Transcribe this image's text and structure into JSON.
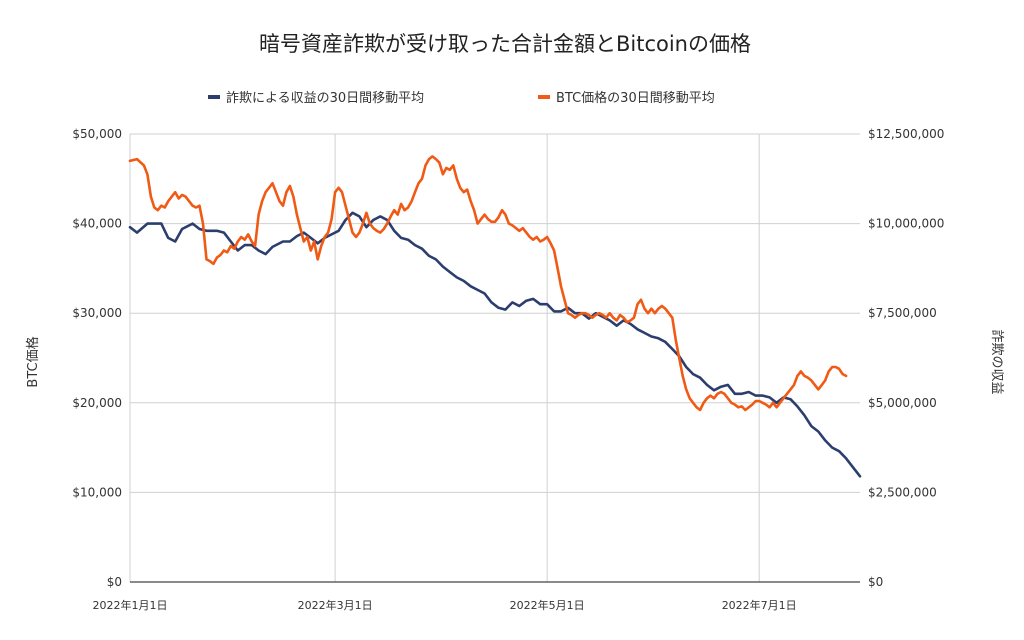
{
  "chart_data": {
    "type": "line",
    "title": "暗号資産詐欺が受け取った合計金額とBitcoinの価格",
    "x_tick_labels": [
      "2022年1月1日",
      "2022年3月1日",
      "2022年5月1日",
      "2022年7月1日"
    ],
    "y_left": {
      "label": "BTC価格",
      "ylim": [
        0,
        50000
      ],
      "tick_labels": [
        "$0",
        "$10,000",
        "$20,000",
        "$30,000",
        "$40,000",
        "$50,000"
      ]
    },
    "y_right": {
      "label": "詐欺の収益",
      "ylim": [
        0,
        12500000
      ],
      "tick_labels": [
        "$0",
        "$2,500,000",
        "$5,000,000",
        "$7,500,000",
        "$10,000,000",
        "$12,500,000"
      ]
    },
    "x_range_days": [
      0,
      210
    ],
    "x_tick_days": [
      0,
      59,
      120,
      181
    ],
    "legend_position": "top",
    "series": [
      {
        "name": "詐欺による収益の30日間移動平均",
        "color": "#2c3e6e",
        "axis": "right",
        "points": [
          [
            0,
            9900000
          ],
          [
            2,
            9750000
          ],
          [
            5,
            10000000
          ],
          [
            9,
            10000000
          ],
          [
            11,
            9600000
          ],
          [
            13,
            9500000
          ],
          [
            15,
            9850000
          ],
          [
            18,
            10000000
          ],
          [
            20,
            9850000
          ],
          [
            22,
            9800000
          ],
          [
            25,
            9800000
          ],
          [
            27,
            9750000
          ],
          [
            29,
            9500000
          ],
          [
            31,
            9250000
          ],
          [
            33,
            9400000
          ],
          [
            35,
            9400000
          ],
          [
            37,
            9250000
          ],
          [
            39,
            9150000
          ],
          [
            41,
            9350000
          ],
          [
            44,
            9500000
          ],
          [
            46,
            9500000
          ],
          [
            48,
            9650000
          ],
          [
            50,
            9750000
          ],
          [
            52,
            9600000
          ],
          [
            54,
            9450000
          ],
          [
            56,
            9600000
          ],
          [
            58,
            9700000
          ],
          [
            60,
            9800000
          ],
          [
            62,
            10100000
          ],
          [
            64,
            10300000
          ],
          [
            66,
            10200000
          ],
          [
            68,
            9900000
          ],
          [
            70,
            10100000
          ],
          [
            72,
            10200000
          ],
          [
            74,
            10100000
          ],
          [
            76,
            9800000
          ],
          [
            78,
            9600000
          ],
          [
            80,
            9550000
          ],
          [
            82,
            9400000
          ],
          [
            84,
            9300000
          ],
          [
            86,
            9100000
          ],
          [
            88,
            9000000
          ],
          [
            90,
            8800000
          ],
          [
            92,
            8650000
          ],
          [
            94,
            8500000
          ],
          [
            96,
            8400000
          ],
          [
            98,
            8250000
          ],
          [
            100,
            8150000
          ],
          [
            102,
            8050000
          ],
          [
            104,
            7800000
          ],
          [
            106,
            7650000
          ],
          [
            108,
            7600000
          ],
          [
            110,
            7800000
          ],
          [
            112,
            7700000
          ],
          [
            114,
            7850000
          ],
          [
            116,
            7900000
          ],
          [
            118,
            7750000
          ],
          [
            120,
            7750000
          ],
          [
            122,
            7550000
          ],
          [
            124,
            7550000
          ],
          [
            126,
            7650000
          ],
          [
            128,
            7500000
          ],
          [
            130,
            7500000
          ],
          [
            132,
            7350000
          ],
          [
            134,
            7500000
          ],
          [
            136,
            7400000
          ],
          [
            138,
            7300000
          ],
          [
            140,
            7150000
          ],
          [
            142,
            7300000
          ],
          [
            144,
            7200000
          ],
          [
            146,
            7050000
          ],
          [
            148,
            6950000
          ],
          [
            150,
            6850000
          ],
          [
            152,
            6800000
          ],
          [
            154,
            6700000
          ],
          [
            156,
            6500000
          ],
          [
            158,
            6300000
          ],
          [
            160,
            6000000
          ],
          [
            162,
            5800000
          ],
          [
            164,
            5700000
          ],
          [
            166,
            5500000
          ],
          [
            168,
            5350000
          ],
          [
            170,
            5450000
          ],
          [
            172,
            5500000
          ],
          [
            174,
            5250000
          ],
          [
            176,
            5250000
          ],
          [
            178,
            5300000
          ],
          [
            180,
            5200000
          ],
          [
            182,
            5200000
          ],
          [
            184,
            5150000
          ],
          [
            186,
            5000000
          ],
          [
            188,
            5150000
          ],
          [
            190,
            5100000
          ],
          [
            192,
            4900000
          ],
          [
            194,
            4650000
          ],
          [
            196,
            4350000
          ],
          [
            198,
            4200000
          ],
          [
            200,
            3950000
          ],
          [
            202,
            3750000
          ],
          [
            204,
            3650000
          ],
          [
            206,
            3450000
          ],
          [
            208,
            3200000
          ],
          [
            210,
            2950000
          ]
        ]
      },
      {
        "name": "BTC価格の30日間移動平均",
        "color": "#f05a14",
        "axis": "left",
        "points": [
          [
            0,
            47000
          ],
          [
            2,
            47200
          ],
          [
            4,
            46500
          ],
          [
            5,
            45500
          ],
          [
            6,
            43000
          ],
          [
            7,
            41800
          ],
          [
            8,
            41500
          ],
          [
            9,
            42000
          ],
          [
            10,
            41800
          ],
          [
            11,
            42500
          ],
          [
            12,
            43000
          ],
          [
            13,
            43500
          ],
          [
            14,
            42800
          ],
          [
            15,
            43200
          ],
          [
            16,
            43000
          ],
          [
            17,
            42500
          ],
          [
            18,
            42000
          ],
          [
            19,
            41800
          ],
          [
            20,
            42000
          ],
          [
            21,
            40000
          ],
          [
            22,
            36000
          ],
          [
            23,
            35800
          ],
          [
            24,
            35500
          ],
          [
            25,
            36200
          ],
          [
            26,
            36500
          ],
          [
            27,
            37000
          ],
          [
            28,
            36800
          ],
          [
            29,
            37500
          ],
          [
            30,
            37200
          ],
          [
            31,
            38000
          ],
          [
            32,
            38500
          ],
          [
            33,
            38200
          ],
          [
            34,
            38800
          ],
          [
            35,
            38000
          ],
          [
            36,
            37500
          ],
          [
            37,
            41000
          ],
          [
            38,
            42500
          ],
          [
            39,
            43500
          ],
          [
            40,
            44000
          ],
          [
            41,
            44500
          ],
          [
            42,
            43500
          ],
          [
            43,
            42500
          ],
          [
            44,
            42000
          ],
          [
            45,
            43500
          ],
          [
            46,
            44200
          ],
          [
            47,
            43000
          ],
          [
            48,
            41000
          ],
          [
            49,
            39500
          ],
          [
            50,
            38000
          ],
          [
            51,
            38500
          ],
          [
            52,
            37000
          ],
          [
            53,
            38000
          ],
          [
            54,
            36000
          ],
          [
            55,
            37500
          ],
          [
            56,
            38500
          ],
          [
            57,
            39000
          ],
          [
            58,
            40500
          ],
          [
            59,
            43500
          ],
          [
            60,
            44000
          ],
          [
            61,
            43500
          ],
          [
            62,
            42000
          ],
          [
            63,
            40500
          ],
          [
            64,
            39000
          ],
          [
            65,
            38500
          ],
          [
            66,
            39000
          ],
          [
            67,
            40000
          ],
          [
            68,
            41200
          ],
          [
            69,
            40000
          ],
          [
            70,
            39500
          ],
          [
            71,
            39200
          ],
          [
            72,
            39000
          ],
          [
            73,
            39400
          ],
          [
            74,
            40000
          ],
          [
            75,
            40800
          ],
          [
            76,
            41500
          ],
          [
            77,
            41000
          ],
          [
            78,
            42200
          ],
          [
            79,
            41500
          ],
          [
            80,
            41800
          ],
          [
            81,
            42500
          ],
          [
            82,
            43500
          ],
          [
            83,
            44500
          ],
          [
            84,
            45000
          ],
          [
            85,
            46500
          ],
          [
            86,
            47200
          ],
          [
            87,
            47500
          ],
          [
            88,
            47200
          ],
          [
            89,
            46800
          ],
          [
            90,
            45500
          ],
          [
            91,
            46200
          ],
          [
            92,
            46000
          ],
          [
            93,
            46500
          ],
          [
            94,
            45000
          ],
          [
            95,
            44000
          ],
          [
            96,
            43500
          ],
          [
            97,
            43800
          ],
          [
            98,
            42500
          ],
          [
            99,
            41500
          ],
          [
            100,
            40000
          ],
          [
            101,
            40500
          ],
          [
            102,
            41000
          ],
          [
            103,
            40500
          ],
          [
            104,
            40200
          ],
          [
            105,
            40200
          ],
          [
            106,
            40700
          ],
          [
            107,
            41500
          ],
          [
            108,
            41000
          ],
          [
            109,
            40000
          ],
          [
            110,
            39800
          ],
          [
            111,
            39500
          ],
          [
            112,
            39200
          ],
          [
            113,
            39500
          ],
          [
            114,
            39000
          ],
          [
            115,
            38500
          ],
          [
            116,
            38200
          ],
          [
            117,
            38500
          ],
          [
            118,
            38000
          ],
          [
            119,
            38200
          ],
          [
            120,
            38500
          ],
          [
            121,
            37800
          ],
          [
            122,
            37000
          ],
          [
            123,
            35000
          ],
          [
            124,
            33000
          ],
          [
            125,
            31500
          ],
          [
            126,
            30000
          ],
          [
            127,
            29800
          ],
          [
            128,
            29500
          ],
          [
            129,
            29800
          ],
          [
            130,
            30000
          ],
          [
            131,
            30000
          ],
          [
            132,
            29800
          ],
          [
            133,
            29500
          ],
          [
            134,
            29800
          ],
          [
            135,
            30000
          ],
          [
            136,
            29800
          ],
          [
            137,
            29500
          ],
          [
            138,
            30000
          ],
          [
            139,
            29500
          ],
          [
            140,
            29200
          ],
          [
            141,
            29800
          ],
          [
            142,
            29500
          ],
          [
            143,
            29000
          ],
          [
            144,
            29200
          ],
          [
            145,
            29500
          ],
          [
            146,
            31000
          ],
          [
            147,
            31500
          ],
          [
            148,
            30500
          ],
          [
            149,
            30000
          ],
          [
            150,
            30500
          ],
          [
            151,
            30000
          ],
          [
            152,
            30500
          ],
          [
            153,
            30800
          ],
          [
            154,
            30500
          ],
          [
            155,
            30000
          ],
          [
            156,
            29500
          ],
          [
            157,
            27000
          ],
          [
            158,
            25000
          ],
          [
            159,
            23000
          ],
          [
            160,
            21500
          ],
          [
            161,
            20500
          ],
          [
            162,
            20000
          ],
          [
            163,
            19500
          ],
          [
            164,
            19200
          ],
          [
            165,
            20000
          ],
          [
            166,
            20500
          ],
          [
            167,
            20800
          ],
          [
            168,
            20500
          ],
          [
            169,
            21000
          ],
          [
            170,
            21200
          ],
          [
            171,
            21000
          ],
          [
            172,
            20500
          ],
          [
            173,
            20000
          ],
          [
            174,
            19800
          ],
          [
            175,
            19500
          ],
          [
            176,
            19600
          ],
          [
            177,
            19200
          ],
          [
            178,
            19500
          ],
          [
            179,
            19800
          ],
          [
            180,
            20200
          ],
          [
            181,
            20200
          ],
          [
            182,
            20000
          ],
          [
            183,
            19800
          ],
          [
            184,
            19500
          ],
          [
            185,
            20000
          ],
          [
            186,
            19500
          ],
          [
            187,
            20000
          ],
          [
            188,
            20500
          ],
          [
            189,
            21000
          ],
          [
            190,
            21500
          ],
          [
            191,
            22000
          ],
          [
            192,
            23000
          ],
          [
            193,
            23500
          ],
          [
            194,
            23000
          ],
          [
            195,
            22800
          ],
          [
            196,
            22500
          ],
          [
            197,
            22000
          ],
          [
            198,
            21500
          ],
          [
            199,
            22000
          ],
          [
            200,
            22500
          ],
          [
            201,
            23500
          ],
          [
            202,
            24000
          ],
          [
            203,
            24000
          ],
          [
            204,
            23800
          ],
          [
            205,
            23200
          ],
          [
            206,
            23000
          ]
        ]
      }
    ]
  }
}
